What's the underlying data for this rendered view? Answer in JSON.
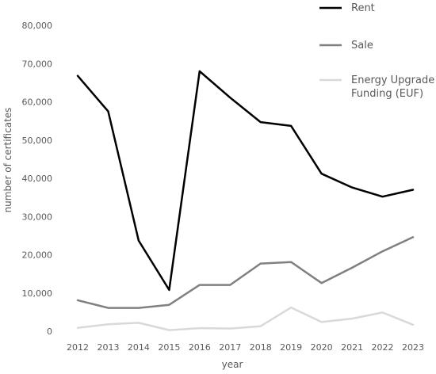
{
  "chart_data": {
    "type": "line",
    "title": "",
    "xlabel": "year",
    "ylabel": "number of certificates",
    "x": [
      2012,
      2013,
      2014,
      2015,
      2016,
      2017,
      2018,
      2019,
      2020,
      2021,
      2022,
      2023
    ],
    "x_tick_labels": [
      "2012",
      "2013",
      "2014",
      "2015",
      "2016",
      "2017",
      "2018",
      "2019",
      "2020",
      "2021",
      "2022",
      "2023"
    ],
    "ylim": [
      0,
      80000
    ],
    "y_ticks": [
      0,
      10000,
      20000,
      30000,
      40000,
      50000,
      60000,
      70000,
      80000
    ],
    "y_tick_labels": [
      "0",
      "10,000",
      "20,000",
      "30,000",
      "40,000",
      "50,000",
      "60,000",
      "70,000",
      "80,000"
    ],
    "grid": false,
    "legend_position": "top-right",
    "series": [
      {
        "name": "Rent",
        "legend_lines": [
          "Rent"
        ],
        "color": "#000000",
        "values": [
          66800,
          57500,
          23700,
          10800,
          68000,
          61100,
          54700,
          53700,
          41200,
          37600,
          35200,
          37000
        ]
      },
      {
        "name": "Sale",
        "legend_lines": [
          "Sale"
        ],
        "color": "#808080",
        "values": [
          8100,
          6100,
          6100,
          6900,
          12100,
          12100,
          17700,
          18100,
          12600,
          16600,
          20900,
          24600
        ]
      },
      {
        "name": "Energy Upgrade Funding (EUF)",
        "legend_lines": [
          "Energy Upgrade",
          "Funding (EUF)"
        ],
        "color": "#d9d9d9",
        "values": [
          900,
          1800,
          2200,
          300,
          800,
          700,
          1300,
          6200,
          2400,
          3300,
          4900,
          1700
        ]
      }
    ]
  }
}
